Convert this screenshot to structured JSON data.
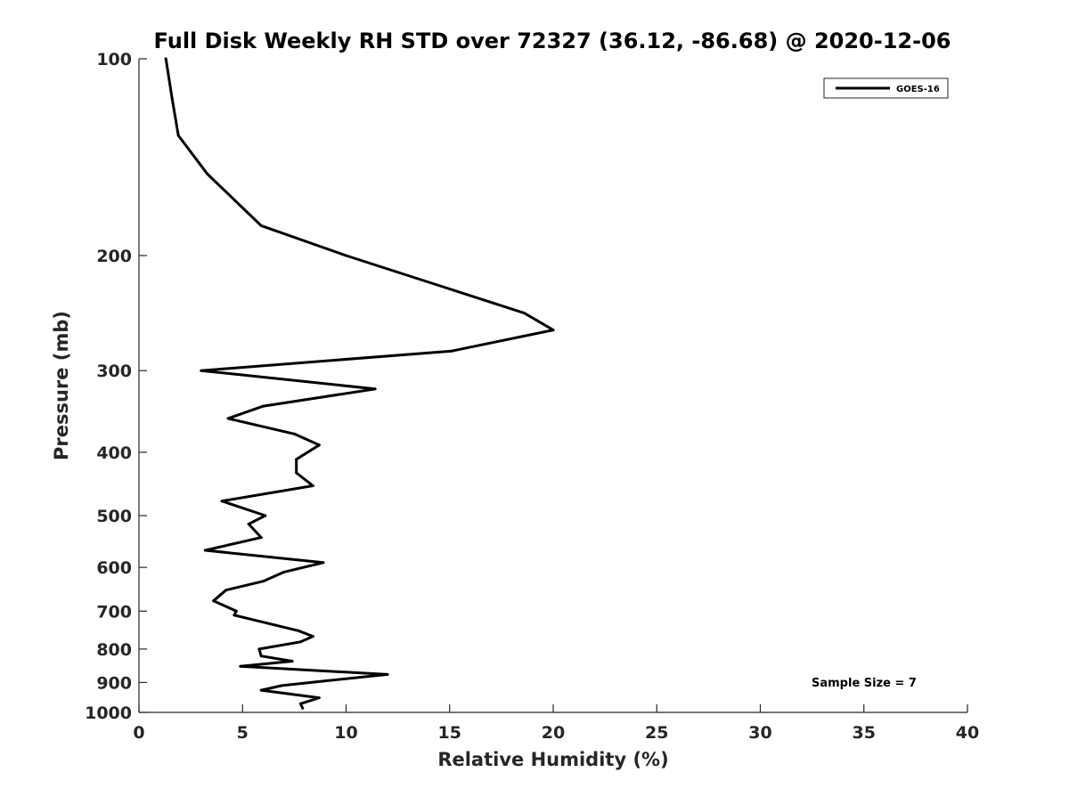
{
  "chart_data": {
    "type": "line",
    "title": "Full Disk Weekly RH STD over 72327 (36.12, -86.68) @ 2020-12-06",
    "xlabel": "Relative Humidity (%)",
    "ylabel": "Pressure (mb)",
    "xlim": [
      0,
      40
    ],
    "ylim": [
      100,
      1000
    ],
    "y_scale": "log",
    "y_reversed": true,
    "x_ticks": [
      0,
      5,
      10,
      15,
      20,
      25,
      30,
      35,
      40
    ],
    "y_ticks": [
      100,
      200,
      300,
      400,
      500,
      600,
      700,
      800,
      900,
      1000
    ],
    "grid": false,
    "legend": {
      "position": "top-right",
      "entries": [
        "GOES-16"
      ]
    },
    "annotation": "Sample Size = 7",
    "series": [
      {
        "name": "GOES-16",
        "color": "#000000",
        "points": [
          [
            1.3,
            100
          ],
          [
            1.6,
            115
          ],
          [
            1.9,
            131
          ],
          [
            3.3,
            150
          ],
          [
            5.9,
            180
          ],
          [
            10.0,
            200
          ],
          [
            15.0,
            225
          ],
          [
            18.6,
            245
          ],
          [
            20.0,
            260
          ],
          [
            15.1,
            280
          ],
          [
            3.0,
            300
          ],
          [
            11.4,
            320
          ],
          [
            6.0,
            340
          ],
          [
            4.3,
            355
          ],
          [
            7.5,
            375
          ],
          [
            8.7,
            390
          ],
          [
            7.6,
            410
          ],
          [
            7.6,
            430
          ],
          [
            8.4,
            450
          ],
          [
            4.0,
            475
          ],
          [
            6.1,
            500
          ],
          [
            5.3,
            515
          ],
          [
            5.9,
            540
          ],
          [
            3.2,
            565
          ],
          [
            8.9,
            590
          ],
          [
            7.0,
            610
          ],
          [
            6.0,
            630
          ],
          [
            4.2,
            650
          ],
          [
            3.6,
            675
          ],
          [
            4.7,
            700
          ],
          [
            4.6,
            710
          ],
          [
            7.7,
            750
          ],
          [
            8.4,
            765
          ],
          [
            7.8,
            780
          ],
          [
            5.8,
            800
          ],
          [
            5.9,
            820
          ],
          [
            7.4,
            835
          ],
          [
            4.9,
            850
          ],
          [
            12.0,
            875
          ],
          [
            9.0,
            895
          ],
          [
            6.9,
            910
          ],
          [
            5.9,
            925
          ],
          [
            8.7,
            950
          ],
          [
            7.8,
            970
          ],
          [
            7.9,
            985
          ]
        ]
      }
    ]
  }
}
